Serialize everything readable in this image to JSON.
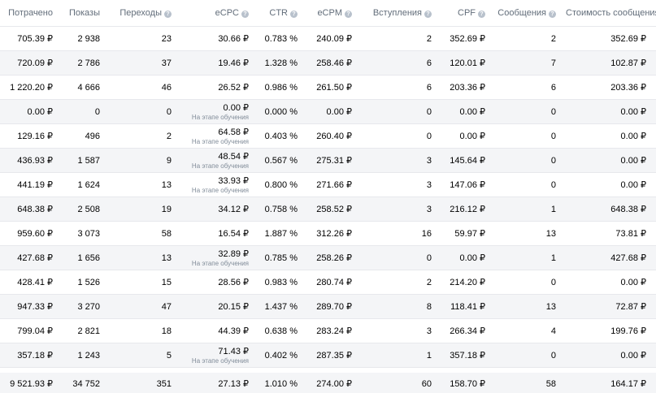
{
  "header": {
    "spent": "Потрачено",
    "impressions": "Показы",
    "clicks": "Переходы",
    "ecpc": "eCPC",
    "ctr": "CTR",
    "ecpm": "eCPM",
    "joins": "Вступления",
    "cpf": "CPF",
    "messages": "Сообщения",
    "message_cost": "Стоимость сообщения",
    "help_glyph": "?"
  },
  "rows": [
    {
      "spent": "705.39 ₽",
      "impressions": "2 938",
      "clicks": "23",
      "ecpc": "30.66 ₽",
      "ecpc_note": "",
      "ctr": "0.783 %",
      "ecpm": "240.09 ₽",
      "joins": "2",
      "cpf": "352.69 ₽",
      "messages": "2",
      "message_cost": "352.69 ₽"
    },
    {
      "spent": "720.09 ₽",
      "impressions": "2 786",
      "clicks": "37",
      "ecpc": "19.46 ₽",
      "ecpc_note": "",
      "ctr": "1.328 %",
      "ecpm": "258.46 ₽",
      "joins": "6",
      "cpf": "120.01 ₽",
      "messages": "7",
      "message_cost": "102.87 ₽"
    },
    {
      "spent": "1 220.20 ₽",
      "impressions": "4 666",
      "clicks": "46",
      "ecpc": "26.52 ₽",
      "ecpc_note": "",
      "ctr": "0.986 %",
      "ecpm": "261.50 ₽",
      "joins": "6",
      "cpf": "203.36 ₽",
      "messages": "6",
      "message_cost": "203.36 ₽"
    },
    {
      "spent": "0.00 ₽",
      "impressions": "0",
      "clicks": "0",
      "ecpc": "0.00 ₽",
      "ecpc_note": "На этапе обучения",
      "ctr": "0.000 %",
      "ecpm": "0.00 ₽",
      "joins": "0",
      "cpf": "0.00 ₽",
      "messages": "0",
      "message_cost": "0.00 ₽"
    },
    {
      "spent": "129.16 ₽",
      "impressions": "496",
      "clicks": "2",
      "ecpc": "64.58 ₽",
      "ecpc_note": "На этапе обучения",
      "ctr": "0.403 %",
      "ecpm": "260.40 ₽",
      "joins": "0",
      "cpf": "0.00 ₽",
      "messages": "0",
      "message_cost": "0.00 ₽"
    },
    {
      "spent": "436.93 ₽",
      "impressions": "1 587",
      "clicks": "9",
      "ecpc": "48.54 ₽",
      "ecpc_note": "На этапе обучения",
      "ctr": "0.567 %",
      "ecpm": "275.31 ₽",
      "joins": "3",
      "cpf": "145.64 ₽",
      "messages": "0",
      "message_cost": "0.00 ₽"
    },
    {
      "spent": "441.19 ₽",
      "impressions": "1 624",
      "clicks": "13",
      "ecpc": "33.93 ₽",
      "ecpc_note": "На этапе обучения",
      "ctr": "0.800 %",
      "ecpm": "271.66 ₽",
      "joins": "3",
      "cpf": "147.06 ₽",
      "messages": "0",
      "message_cost": "0.00 ₽"
    },
    {
      "spent": "648.38 ₽",
      "impressions": "2 508",
      "clicks": "19",
      "ecpc": "34.12 ₽",
      "ecpc_note": "",
      "ctr": "0.758 %",
      "ecpm": "258.52 ₽",
      "joins": "3",
      "cpf": "216.12 ₽",
      "messages": "1",
      "message_cost": "648.38 ₽"
    },
    {
      "spent": "959.60 ₽",
      "impressions": "3 073",
      "clicks": "58",
      "ecpc": "16.54 ₽",
      "ecpc_note": "",
      "ctr": "1.887 %",
      "ecpm": "312.26 ₽",
      "joins": "16",
      "cpf": "59.97 ₽",
      "messages": "13",
      "message_cost": "73.81 ₽"
    },
    {
      "spent": "427.68 ₽",
      "impressions": "1 656",
      "clicks": "13",
      "ecpc": "32.89 ₽",
      "ecpc_note": "На этапе обучения",
      "ctr": "0.785 %",
      "ecpm": "258.26 ₽",
      "joins": "0",
      "cpf": "0.00 ₽",
      "messages": "1",
      "message_cost": "427.68 ₽"
    },
    {
      "spent": "428.41 ₽",
      "impressions": "1 526",
      "clicks": "15",
      "ecpc": "28.56 ₽",
      "ecpc_note": "",
      "ctr": "0.983 %",
      "ecpm": "280.74 ₽",
      "joins": "2",
      "cpf": "214.20 ₽",
      "messages": "0",
      "message_cost": "0.00 ₽"
    },
    {
      "spent": "947.33 ₽",
      "impressions": "3 270",
      "clicks": "47",
      "ecpc": "20.15 ₽",
      "ecpc_note": "",
      "ctr": "1.437 %",
      "ecpm": "289.70 ₽",
      "joins": "8",
      "cpf": "118.41 ₽",
      "messages": "13",
      "message_cost": "72.87 ₽"
    },
    {
      "spent": "799.04 ₽",
      "impressions": "2 821",
      "clicks": "18",
      "ecpc": "44.39 ₽",
      "ecpc_note": "",
      "ctr": "0.638 %",
      "ecpm": "283.24 ₽",
      "joins": "3",
      "cpf": "266.34 ₽",
      "messages": "4",
      "message_cost": "199.76 ₽"
    },
    {
      "spent": "357.18 ₽",
      "impressions": "1 243",
      "clicks": "5",
      "ecpc": "71.43 ₽",
      "ecpc_note": "На этапе обучения",
      "ctr": "0.402 %",
      "ecpm": "287.35 ₽",
      "joins": "1",
      "cpf": "357.18 ₽",
      "messages": "0",
      "message_cost": "0.00 ₽"
    }
  ],
  "total": {
    "spent": "9 521.93 ₽",
    "impressions": "34 752",
    "clicks": "351",
    "ecpc": "27.13 ₽",
    "ctr": "1.010 %",
    "ecpm": "274.00 ₽",
    "joins": "60",
    "cpf": "158.70 ₽",
    "messages": "58",
    "message_cost": "164.17 ₽"
  },
  "colors": {
    "header_text": "#626d7a",
    "row_stripe": "#f4f5f7",
    "total_bg": "#f0f2f5",
    "help_icon": "#b8c1cc",
    "note_text": "#818c99"
  },
  "icons": {
    "help": "question-circle-icon"
  }
}
